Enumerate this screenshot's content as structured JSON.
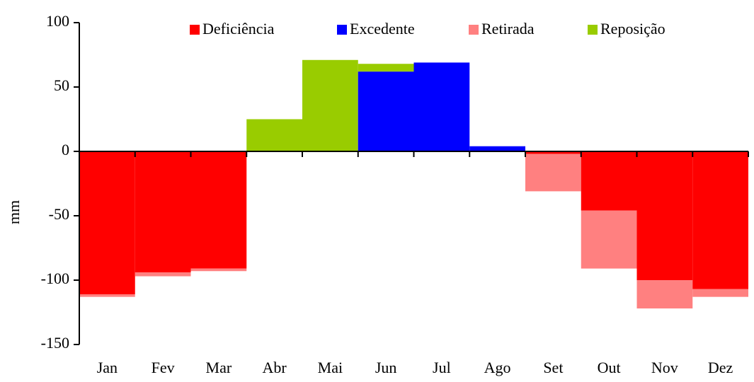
{
  "chart_data": {
    "type": "bar",
    "stacked": true,
    "y_label": "mm",
    "categories": [
      "Jan",
      "Fev",
      "Mar",
      "Abr",
      "Mai",
      "Jun",
      "Jul",
      "Ago",
      "Set",
      "Out",
      "Nov",
      "Dez"
    ],
    "series": [
      {
        "name": "Deficiência",
        "color": "#ff0000",
        "values": [
          -111,
          -94,
          -91,
          0,
          0,
          0,
          0,
          0,
          -2,
          -46,
          -100,
          -107
        ]
      },
      {
        "name": "Excedente",
        "color": "#0000ff",
        "values": [
          0,
          0,
          0,
          0,
          0,
          62,
          69,
          4,
          0,
          0,
          0,
          0
        ]
      },
      {
        "name": "Retirada",
        "color": "#ff8080",
        "values": [
          -2,
          -3,
          -2,
          0,
          0,
          0,
          0,
          0,
          -29,
          -45,
          -22,
          -6
        ]
      },
      {
        "name": "Reposição",
        "color": "#99cc00",
        "values": [
          0,
          0,
          0,
          25,
          71,
          6,
          0,
          0,
          0,
          0,
          0,
          0
        ]
      }
    ],
    "ylim": [
      -150,
      100
    ],
    "yticks": [
      -150,
      -100,
      -50,
      0,
      50,
      100
    ],
    "grid": false,
    "legend": "top"
  }
}
